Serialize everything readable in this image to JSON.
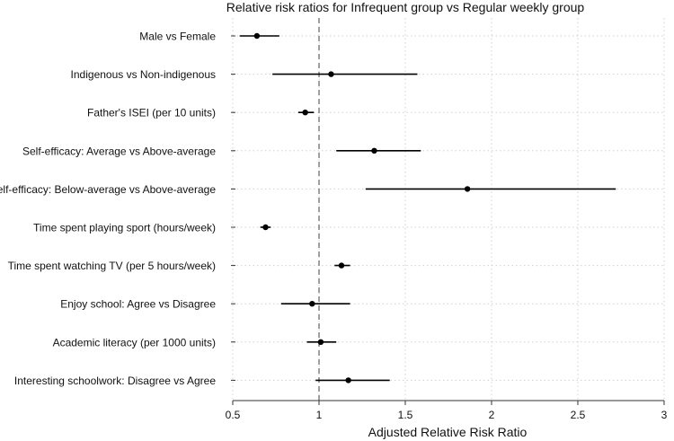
{
  "chart_data": {
    "type": "forest",
    "title": "Relative risk ratios for Infrequent group vs Regular weekly group",
    "xlabel": "Adjusted Relative Risk Ratio",
    "ylabel": "",
    "xlim": [
      0.5,
      3.0
    ],
    "xticks": [
      {
        "value": 0.5,
        "label": "0.5"
      },
      {
        "value": 1.0,
        "label": "1"
      },
      {
        "value": 1.5,
        "label": "1.5"
      },
      {
        "value": 2.0,
        "label": "2"
      },
      {
        "value": 2.5,
        "label": "2.5"
      },
      {
        "value": 3.0,
        "label": "3"
      }
    ],
    "reference_line": 1.0,
    "grid": true,
    "rows": [
      {
        "label": "Male vs Female",
        "estimate": 0.64,
        "lower": 0.54,
        "upper": 0.77
      },
      {
        "label": "Indigenous vs Non-indigenous",
        "estimate": 1.07,
        "lower": 0.73,
        "upper": 1.57
      },
      {
        "label": "Father's ISEI (per 10 units)",
        "estimate": 0.92,
        "lower": 0.88,
        "upper": 0.97
      },
      {
        "label": "Self-efficacy: Average vs Above-average",
        "estimate": 1.32,
        "lower": 1.1,
        "upper": 1.59
      },
      {
        "label": "Self-efficacy: Below-average vs Above-average",
        "estimate": 1.86,
        "lower": 1.27,
        "upper": 2.72
      },
      {
        "label": "Time spent playing sport (hours/week)",
        "estimate": 0.69,
        "lower": 0.66,
        "upper": 0.72
      },
      {
        "label": "Time spent watching TV (per 5 hours/week)",
        "estimate": 1.13,
        "lower": 1.09,
        "upper": 1.18
      },
      {
        "label": "Enjoy school: Agree vs Disagree",
        "estimate": 0.96,
        "lower": 0.78,
        "upper": 1.18
      },
      {
        "label": "Academic literacy (per 1000 units)",
        "estimate": 1.01,
        "lower": 0.93,
        "upper": 1.1
      },
      {
        "label": "Interesting schoolwork: Disagree vs Agree",
        "estimate": 1.17,
        "lower": 0.98,
        "upper": 1.41
      }
    ]
  },
  "colors": {
    "background": "#ffffff",
    "grid": "#d0d0d0",
    "axis": "#333333",
    "marker": "#000000",
    "reference": "#777777"
  }
}
